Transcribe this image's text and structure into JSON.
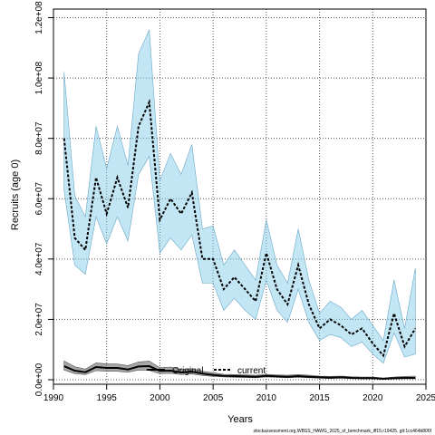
{
  "chart_data": {
    "type": "line",
    "xlabel": "Years",
    "ylabel": "Recruits (age 0)",
    "xlim": [
      1990,
      2025
    ],
    "ylim": [
      0,
      120000000
    ],
    "x_ticks": [
      1990,
      1995,
      2000,
      2005,
      2010,
      2015,
      2020,
      2025
    ],
    "x_tick_labels": [
      "1990",
      "1995",
      "2000",
      "2005",
      "2010",
      "2015",
      "2020",
      "2025"
    ],
    "y_ticks": [
      0,
      20000000,
      40000000,
      60000000,
      80000000,
      100000000,
      120000000
    ],
    "y_tick_labels": [
      "0.0e+00",
      "2.0e+07",
      "4.0e+07",
      "6.0e+07",
      "8.0e+07",
      "1.0e+08",
      "1.2e+08"
    ],
    "grid": true,
    "legend_position": "bottom-center",
    "footer": "stockassessment.org,WBSS_HAWG_2025_sf_benchmark_iff15,r19425, git:1cc464b806f",
    "x": [
      1991,
      1992,
      1993,
      1994,
      1995,
      1996,
      1997,
      1998,
      1999,
      2000,
      2001,
      2002,
      2003,
      2004,
      2005,
      2006,
      2007,
      2008,
      2009,
      2010,
      2011,
      2012,
      2013,
      2014,
      2015,
      2016,
      2017,
      2018,
      2019,
      2020,
      2021,
      2022,
      2023,
      2024
    ],
    "series": [
      {
        "name": "Original",
        "color": "#000000",
        "band_color": "#808080",
        "values": [
          4500000,
          3000000,
          2500000,
          4200000,
          3900000,
          3900000,
          3400000,
          4400000,
          4500000,
          2900000,
          3000000,
          2400000,
          2700000,
          2000000,
          1600000,
          1300000,
          1200000,
          1100000,
          1000000,
          1300000,
          1100000,
          1000000,
          1200000,
          1000000,
          800000,
          700000,
          800000,
          600000,
          500000,
          500000,
          300000,
          500000,
          600000,
          600000
        ],
        "lower": [
          3200000,
          2000000,
          1700000,
          3000000,
          2800000,
          2800000,
          2500000,
          3200000,
          3100000,
          2000000,
          2100000,
          1700000,
          1900000,
          1400000,
          1100000,
          900000,
          800000,
          700000,
          650000,
          900000,
          750000,
          650000,
          800000,
          650000,
          500000,
          400000,
          500000,
          350000,
          300000,
          300000,
          150000,
          250000,
          300000,
          300000
        ],
        "upper": [
          6200000,
          4300000,
          3500000,
          5600000,
          5300000,
          5200000,
          4700000,
          5900000,
          6200000,
          4000000,
          4200000,
          3400000,
          3700000,
          2800000,
          2300000,
          1800000,
          1700000,
          1600000,
          1500000,
          1800000,
          1600000,
          1500000,
          1700000,
          1500000,
          1200000,
          1100000,
          1200000,
          1000000,
          900000,
          900000,
          600000,
          900000,
          1100000,
          1200000
        ]
      },
      {
        "name": "current",
        "color": "#000000",
        "band_color": "#87CEEB",
        "values": [
          80000000,
          47000000,
          43000000,
          67000000,
          55000000,
          67000000,
          57000000,
          84000000,
          92000000,
          53000000,
          60000000,
          55000000,
          62000000,
          40000000,
          40000000,
          30000000,
          34000000,
          30000000,
          26000000,
          42000000,
          30000000,
          25000000,
          38000000,
          25000000,
          17000000,
          20000000,
          18000000,
          15000000,
          17000000,
          12000000,
          8000000,
          22000000,
          11000000,
          17000000
        ],
        "lower": [
          63000000,
          38000000,
          35000000,
          54000000,
          45000000,
          54000000,
          46000000,
          68000000,
          74000000,
          42000000,
          47000000,
          43000000,
          48000000,
          32000000,
          32000000,
          23000000,
          27000000,
          23000000,
          20000000,
          33000000,
          23000000,
          19000000,
          30000000,
          19000000,
          13000000,
          15000000,
          14000000,
          11000000,
          12500000,
          8500000,
          5500000,
          15500000,
          7500000,
          8500000
        ],
        "upper": [
          102000000,
          61000000,
          54000000,
          84000000,
          70000000,
          84000000,
          71000000,
          108000000,
          116000000,
          66000000,
          75000000,
          68000000,
          78000000,
          50000000,
          51000000,
          38000000,
          43000000,
          38000000,
          33000000,
          53000000,
          38000000,
          32000000,
          50000000,
          33000000,
          22000000,
          26000000,
          24000000,
          20000000,
          23000000,
          18000000,
          13000000,
          33000000,
          17000000,
          37000000
        ]
      }
    ]
  }
}
